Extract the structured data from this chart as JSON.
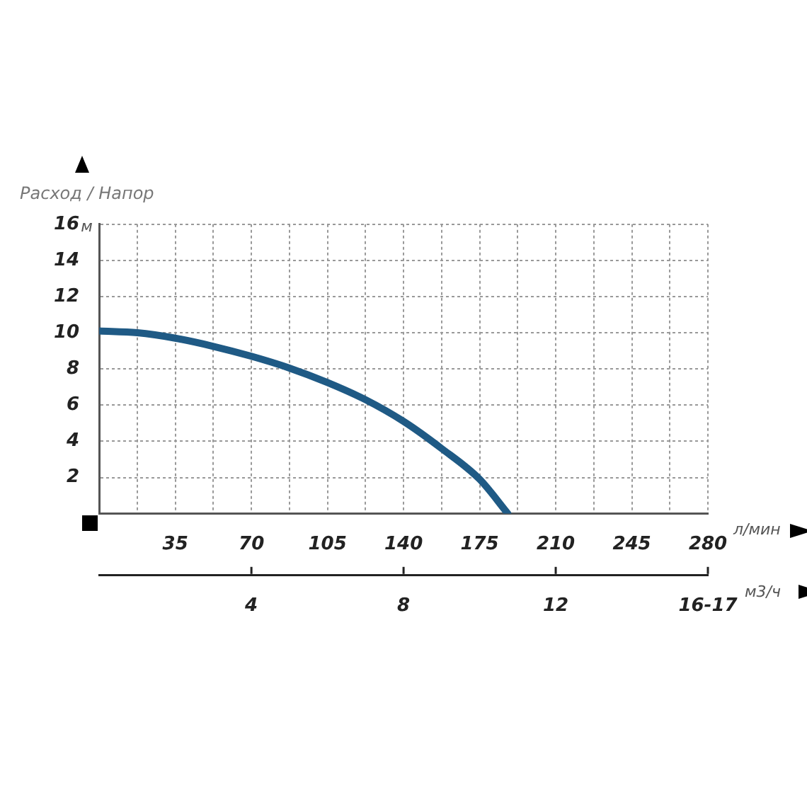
{
  "chart_data": {
    "type": "line",
    "title": "Расход / Напор",
    "xlabel": "л/мин",
    "x2label": "м3/ч",
    "ylabel": "м",
    "x": [
      0,
      17.5,
      35,
      52.5,
      70,
      87.5,
      105,
      122.5,
      140,
      157.5,
      175,
      188
    ],
    "series": [
      {
        "color": "#1f5a85",
        "values": [
          10.1,
          10.0,
          9.7,
          9.25,
          8.7,
          8.05,
          7.25,
          6.3,
          5.1,
          3.6,
          1.9,
          0
        ]
      }
    ],
    "xlim": [
      0,
      280
    ],
    "xticks": [
      {
        "value": 17.5,
        "label": null
      },
      35,
      {
        "value": 52.5,
        "label": null
      },
      70,
      {
        "value": 87.5,
        "label": null
      },
      105,
      {
        "value": 122.5,
        "label": null
      },
      140,
      {
        "value": 157.5,
        "label": null
      },
      175,
      {
        "value": 192.5,
        "label": null
      },
      210,
      {
        "value": 227.5,
        "label": null
      },
      245,
      {
        "value": 262.5,
        "label": null
      },
      280
    ],
    "x2lim": [
      0,
      16
    ],
    "x2ticks": [
      4,
      8,
      12,
      {
        "value": 16,
        "label": "16-17"
      }
    ],
    "ylim": [
      0,
      16
    ],
    "yticks": [
      2,
      4,
      6,
      8,
      10,
      12,
      14,
      16
    ],
    "grid": true,
    "legend": false,
    "marker": "none",
    "line_style": "solid"
  }
}
